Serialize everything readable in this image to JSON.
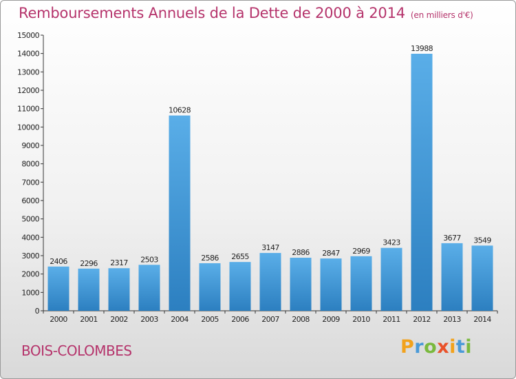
{
  "header": {
    "title": "Remboursements Annuels de la Dette de 2000 à 2014",
    "subtitle": "(en milliers d'€)"
  },
  "footer": {
    "city": "BOIS-COLOMBES",
    "logo_text": "Proxiti"
  },
  "colors": {
    "title": "#b5336b",
    "bar_light": "#5aaee8",
    "bar_dark": "#2c7fc0",
    "axis": "#333333"
  },
  "chart_data": {
    "type": "bar",
    "categories": [
      "2000",
      "2001",
      "2002",
      "2003",
      "2004",
      "2005",
      "2006",
      "2007",
      "2008",
      "2009",
      "2010",
      "2011",
      "2012",
      "2013",
      "2014"
    ],
    "values": [
      2406,
      2296,
      2317,
      2503,
      10628,
      2586,
      2655,
      3147,
      2886,
      2847,
      2969,
      3423,
      13988,
      3677,
      3549
    ],
    "ylim": [
      0,
      15000
    ],
    "yticks": [
      0,
      1000,
      2000,
      3000,
      4000,
      5000,
      6000,
      7000,
      8000,
      9000,
      10000,
      11000,
      12000,
      13000,
      14000,
      15000
    ],
    "grid": false,
    "data_labels": true
  }
}
